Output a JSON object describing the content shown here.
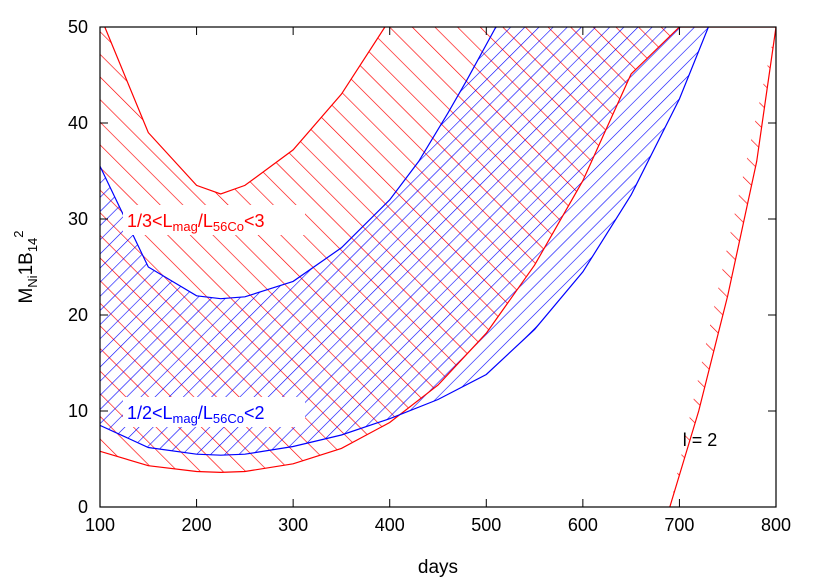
{
  "chart_data": {
    "type": "area",
    "title": "",
    "xlabel": "days",
    "ylabel": {
      "main": "M",
      "sub1": "Ni",
      "main2": "1B",
      "sub2": "14",
      "sup": "2"
    },
    "xlim": [
      100,
      800
    ],
    "ylim": [
      0,
      50
    ],
    "xticks": [
      100,
      200,
      300,
      400,
      500,
      600,
      700,
      800
    ],
    "yticks": [
      0,
      10,
      20,
      30,
      40,
      50
    ],
    "annotation": "l = 2",
    "series": [
      {
        "name": "1/3<Lmag/L56Co<3",
        "label_parts": {
          "a": "1/3<L",
          "b": "mag",
          "c": "/L",
          "d": "56Co",
          "e": "<3"
        },
        "color": "#ff0000",
        "hatch": "diagonal",
        "lower": {
          "x": [
            100,
            150,
            200,
            225,
            250,
            300,
            350,
            400,
            450,
            500,
            550,
            600,
            650,
            700,
            750,
            800
          ],
          "y": [
            5.8,
            4.3,
            3.7,
            3.6,
            3.7,
            4.5,
            6.1,
            8.8,
            12.7,
            18.1,
            25.2,
            34.0,
            45.1,
            50,
            50,
            50
          ]
        },
        "upper": {
          "x": [
            105,
            150,
            200,
            225,
            250,
            300,
            350,
            395
          ],
          "y": [
            50,
            39.0,
            33.5,
            32.6,
            33.5,
            37.2,
            43.0,
            50
          ]
        },
        "right_edge": {
          "x": [
            690,
            720,
            750,
            780,
            800
          ],
          "y": [
            0,
            10.0,
            22.0,
            36.0,
            50
          ]
        }
      },
      {
        "name": "1/2<Lmag/L56Co<2",
        "label_parts": {
          "a": "1/2<L",
          "b": "mag",
          "c": "/L",
          "d": "56Co",
          "e": "<2"
        },
        "color": "#0000ff",
        "hatch": "cross",
        "lower": {
          "x": [
            100,
            150,
            200,
            225,
            250,
            300,
            350,
            400,
            450,
            500,
            550,
            600,
            650,
            700,
            730
          ],
          "y": [
            8.5,
            6.2,
            5.5,
            5.4,
            5.5,
            6.3,
            7.5,
            9.2,
            11.2,
            13.8,
            18.5,
            24.5,
            32.5,
            42.5,
            50
          ]
        },
        "upper": {
          "x": [
            100,
            150,
            200,
            225,
            250,
            300,
            350,
            400,
            430,
            460,
            480,
            510
          ],
          "y": [
            35.5,
            25.0,
            22.0,
            21.7,
            21.9,
            23.5,
            27.0,
            32.0,
            36.0,
            41.0,
            44.5,
            50
          ]
        }
      }
    ],
    "grid": false
  }
}
